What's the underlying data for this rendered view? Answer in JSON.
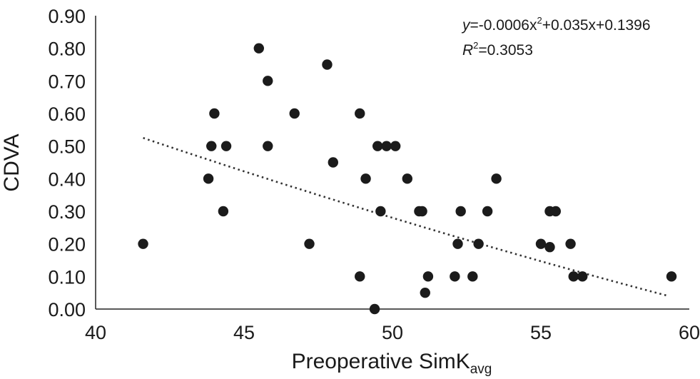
{
  "chart_data": {
    "type": "scatter",
    "xlabel": "Preoperative SimK",
    "xlabel_subscript": "avg",
    "ylabel": "CDVA",
    "xlim": [
      40,
      60
    ],
    "ylim": [
      0,
      0.9
    ],
    "xticks": [
      "40",
      "45",
      "50",
      "55",
      "60"
    ],
    "yticks": [
      "0.00",
      "0.10",
      "0.20",
      "0.30",
      "0.40",
      "0.50",
      "0.60",
      "0.70",
      "0.80",
      "0.90"
    ],
    "grid": false,
    "points": [
      {
        "x": 41.6,
        "y": 0.2
      },
      {
        "x": 43.8,
        "y": 0.4
      },
      {
        "x": 43.9,
        "y": 0.5
      },
      {
        "x": 44.0,
        "y": 0.6
      },
      {
        "x": 44.3,
        "y": 0.3
      },
      {
        "x": 44.4,
        "y": 0.5
      },
      {
        "x": 45.5,
        "y": 0.8
      },
      {
        "x": 45.8,
        "y": 0.7
      },
      {
        "x": 45.8,
        "y": 0.5
      },
      {
        "x": 46.7,
        "y": 0.6
      },
      {
        "x": 47.2,
        "y": 0.2
      },
      {
        "x": 47.8,
        "y": 0.75
      },
      {
        "x": 48.0,
        "y": 0.45
      },
      {
        "x": 48.9,
        "y": 0.6
      },
      {
        "x": 48.9,
        "y": 0.1
      },
      {
        "x": 49.1,
        "y": 0.4
      },
      {
        "x": 49.4,
        "y": 0.0
      },
      {
        "x": 49.5,
        "y": 0.5
      },
      {
        "x": 49.6,
        "y": 0.3
      },
      {
        "x": 49.8,
        "y": 0.5
      },
      {
        "x": 50.1,
        "y": 0.5
      },
      {
        "x": 50.5,
        "y": 0.4
      },
      {
        "x": 50.9,
        "y": 0.3
      },
      {
        "x": 51.0,
        "y": 0.3
      },
      {
        "x": 51.1,
        "y": 0.05
      },
      {
        "x": 51.2,
        "y": 0.1
      },
      {
        "x": 52.1,
        "y": 0.1
      },
      {
        "x": 52.2,
        "y": 0.2
      },
      {
        "x": 52.3,
        "y": 0.3
      },
      {
        "x": 52.7,
        "y": 0.1
      },
      {
        "x": 52.9,
        "y": 0.2
      },
      {
        "x": 53.2,
        "y": 0.3
      },
      {
        "x": 53.5,
        "y": 0.4
      },
      {
        "x": 55.0,
        "y": 0.2
      },
      {
        "x": 55.3,
        "y": 0.3
      },
      {
        "x": 55.3,
        "y": 0.19
      },
      {
        "x": 55.5,
        "y": 0.3
      },
      {
        "x": 56.0,
        "y": 0.2
      },
      {
        "x": 56.1,
        "y": 0.1
      },
      {
        "x": 56.4,
        "y": 0.1
      },
      {
        "x": 59.4,
        "y": 0.1
      }
    ],
    "trendline": {
      "type": "polynomial",
      "style": "dotted",
      "x_range": [
        41.6,
        59.3
      ],
      "equation_text": {
        "y_var": "y",
        "rhs_a": "=-0.0006x",
        "rhs_exp": "2",
        "rhs_b": "+0.035x+0.1396"
      },
      "r2_text": {
        "r_var": "R",
        "r_exp": "2",
        "rhs": "=0.3053"
      }
    }
  }
}
